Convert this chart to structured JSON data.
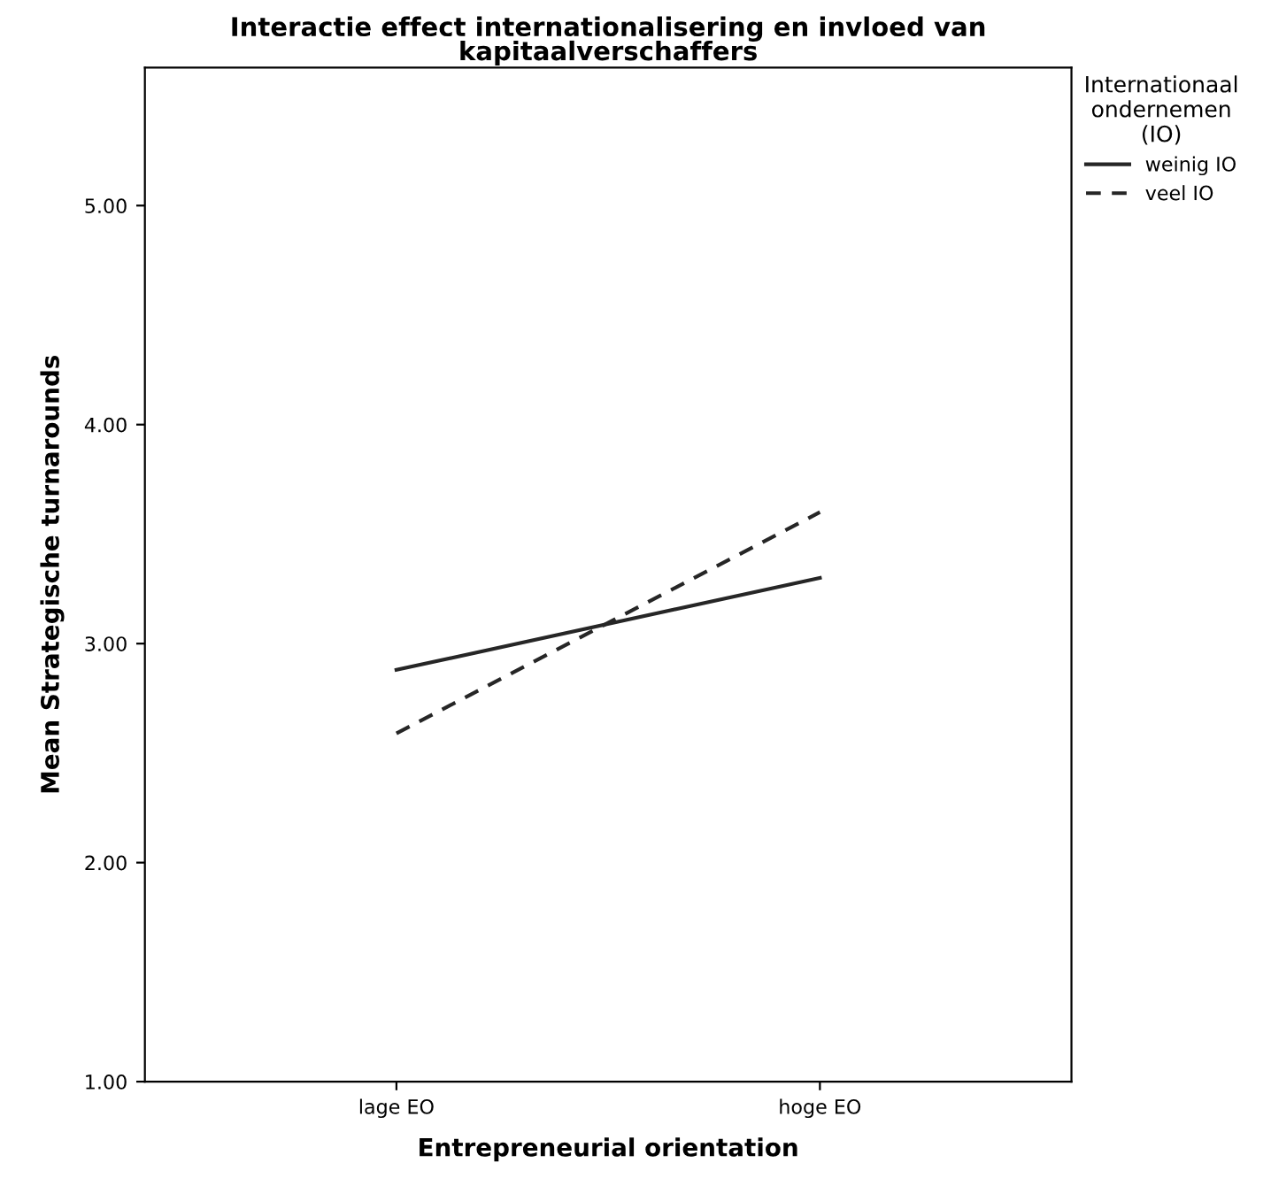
{
  "chart_data": {
    "type": "line",
    "title": "Interactie effect internationalisering en invloed van\nkapitaalverschaffers",
    "xlabel": "Entrepreneurial orientation",
    "ylabel": "Mean Strategische turnarounds",
    "legend_title": "Internationaal\nondernemen\n(IO)",
    "categories": [
      "lage EO",
      "hoge EO"
    ],
    "series": [
      {
        "name": "weinig IO",
        "color": "#262626",
        "values": [
          2.88,
          3.3
        ],
        "line_style": "solid"
      },
      {
        "name": "veel IO",
        "color": "#262626",
        "values": [
          2.59,
          3.6
        ],
        "line_style": "dashed"
      }
    ],
    "ylim": [
      1.0,
      5.63
    ],
    "yticks": [
      {
        "value": 1,
        "label": "1.00"
      },
      {
        "value": 2,
        "label": "2.00"
      },
      {
        "value": 3,
        "label": "3.00"
      },
      {
        "value": 4,
        "label": "4.00"
      },
      {
        "value": 5,
        "label": "5.00"
      }
    ],
    "grid": false,
    "legend": "top right",
    "marker": "none"
  }
}
